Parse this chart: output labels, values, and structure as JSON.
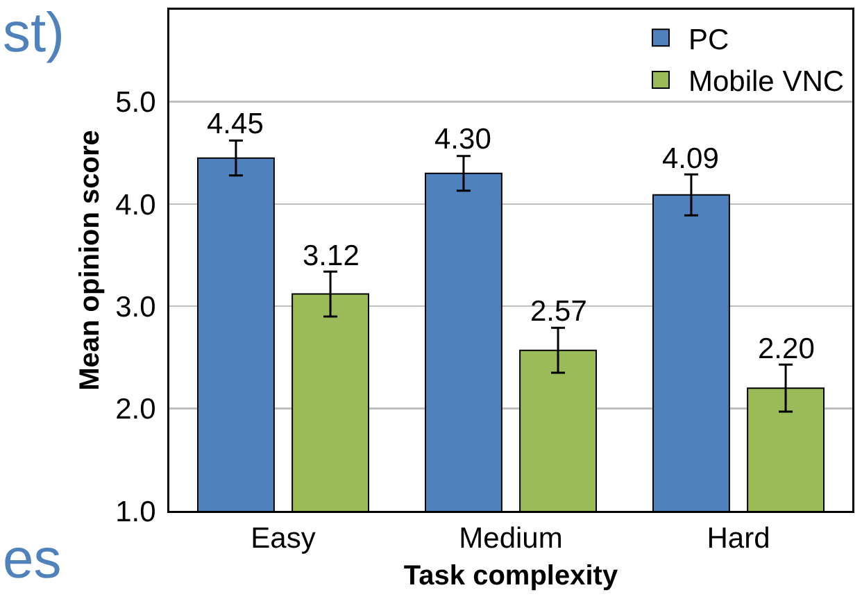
{
  "chart_data": {
    "type": "bar",
    "xlabel": "Task complexity",
    "ylabel": "Mean opinion score",
    "categories": [
      "Easy",
      "Medium",
      "Hard"
    ],
    "series": [
      {
        "name": "PC",
        "color": "#4f81bd",
        "values": [
          4.45,
          4.3,
          4.09
        ],
        "value_labels": [
          "4.45",
          "4.30",
          "4.09"
        ],
        "errors": [
          0.17,
          0.17,
          0.2
        ]
      },
      {
        "name": "Mobile VNC",
        "color": "#9bbb59",
        "values": [
          3.12,
          2.57,
          2.2
        ],
        "value_labels": [
          "3.12",
          "2.57",
          "2.20"
        ],
        "errors": [
          0.22,
          0.22,
          0.23
        ]
      }
    ],
    "ylim": [
      1,
      5.9
    ],
    "yticks": [
      {
        "value": 1,
        "label": "1.0"
      },
      {
        "value": 2,
        "label": "2.0"
      },
      {
        "value": 3,
        "label": "3.0"
      },
      {
        "value": 4,
        "label": "4.0"
      },
      {
        "value": 5,
        "label": "5.0"
      }
    ],
    "grid": "y",
    "legend": "top right",
    "annotations": [
      "st)",
      "es"
    ]
  }
}
